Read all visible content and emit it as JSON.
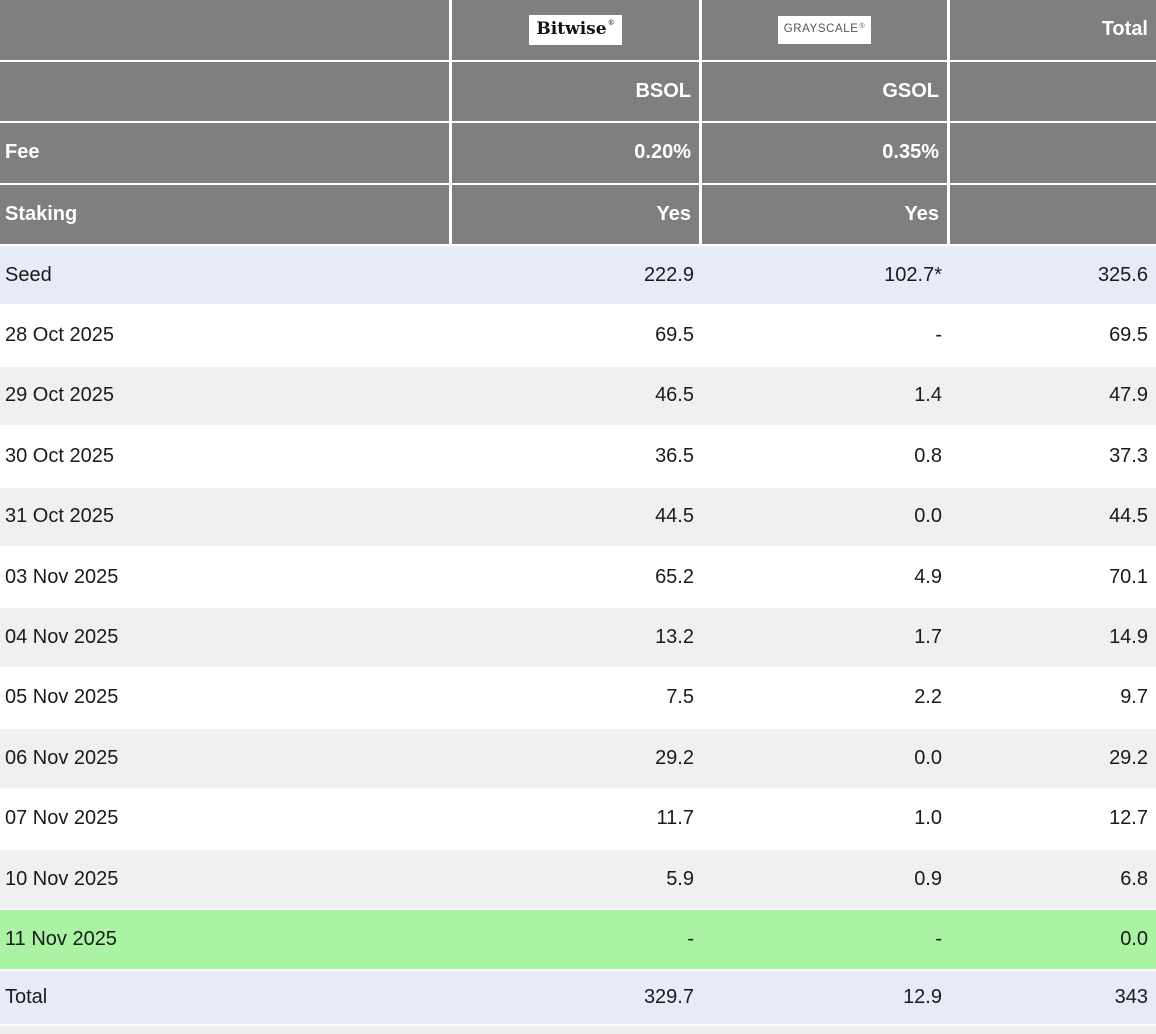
{
  "chart_data": {
    "type": "table",
    "columns": [
      "",
      "Bitwise BSOL",
      "Grayscale GSOL",
      "Total"
    ],
    "providers": {
      "bitwise_logo": "Bitwise",
      "grayscale_logo": "GRAYSCALE",
      "reg_mark": "®",
      "total_label": "Total"
    },
    "tickers": {
      "bsol": "BSOL",
      "gsol": "GSOL"
    },
    "fee": {
      "label": "Fee",
      "bsol": "0.20%",
      "gsol": "0.35%"
    },
    "staking": {
      "label": "Staking",
      "bsol": "Yes",
      "gsol": "Yes"
    },
    "rows": [
      {
        "label": "Seed",
        "bsol": "222.9",
        "gsol": "102.7*",
        "total": "325.6",
        "highlight": "accent"
      },
      {
        "label": "28 Oct 2025",
        "bsol": "69.5",
        "gsol": "-",
        "total": "69.5",
        "highlight": ""
      },
      {
        "label": "29 Oct 2025",
        "bsol": "46.5",
        "gsol": "1.4",
        "total": "47.9",
        "highlight": ""
      },
      {
        "label": "30 Oct 2025",
        "bsol": "36.5",
        "gsol": "0.8",
        "total": "37.3",
        "highlight": ""
      },
      {
        "label": "31 Oct 2025",
        "bsol": "44.5",
        "gsol": "0.0",
        "total": "44.5",
        "highlight": ""
      },
      {
        "label": "03 Nov 2025",
        "bsol": "65.2",
        "gsol": "4.9",
        "total": "70.1",
        "highlight": ""
      },
      {
        "label": "04 Nov 2025",
        "bsol": "13.2",
        "gsol": "1.7",
        "total": "14.9",
        "highlight": ""
      },
      {
        "label": "05 Nov 2025",
        "bsol": "7.5",
        "gsol": "2.2",
        "total": "9.7",
        "highlight": ""
      },
      {
        "label": "06 Nov 2025",
        "bsol": "29.2",
        "gsol": "0.0",
        "total": "29.2",
        "highlight": ""
      },
      {
        "label": "07 Nov 2025",
        "bsol": "11.7",
        "gsol": "1.0",
        "total": "12.7",
        "highlight": ""
      },
      {
        "label": "10 Nov 2025",
        "bsol": "5.9",
        "gsol": "0.9",
        "total": "6.8",
        "highlight": ""
      },
      {
        "label": "11 Nov 2025",
        "bsol": "-",
        "gsol": "-",
        "total": "0.0",
        "highlight": "green"
      },
      {
        "label": "Total",
        "bsol": "329.7",
        "gsol": "12.9",
        "total": "343",
        "highlight": "accent total-row"
      }
    ]
  },
  "colors": {
    "header_bg": "#7F7F7F",
    "header_text": "#FFFFFF",
    "accent_row_bg": "#E7EBF7",
    "stripe_row_bg": "#F0F0F0",
    "green_row_bg": "#A9F3A2",
    "body_text": "#1A1A1A",
    "bitwise_logo_color": "#111111",
    "grayscale_logo_color": "#54555D"
  }
}
